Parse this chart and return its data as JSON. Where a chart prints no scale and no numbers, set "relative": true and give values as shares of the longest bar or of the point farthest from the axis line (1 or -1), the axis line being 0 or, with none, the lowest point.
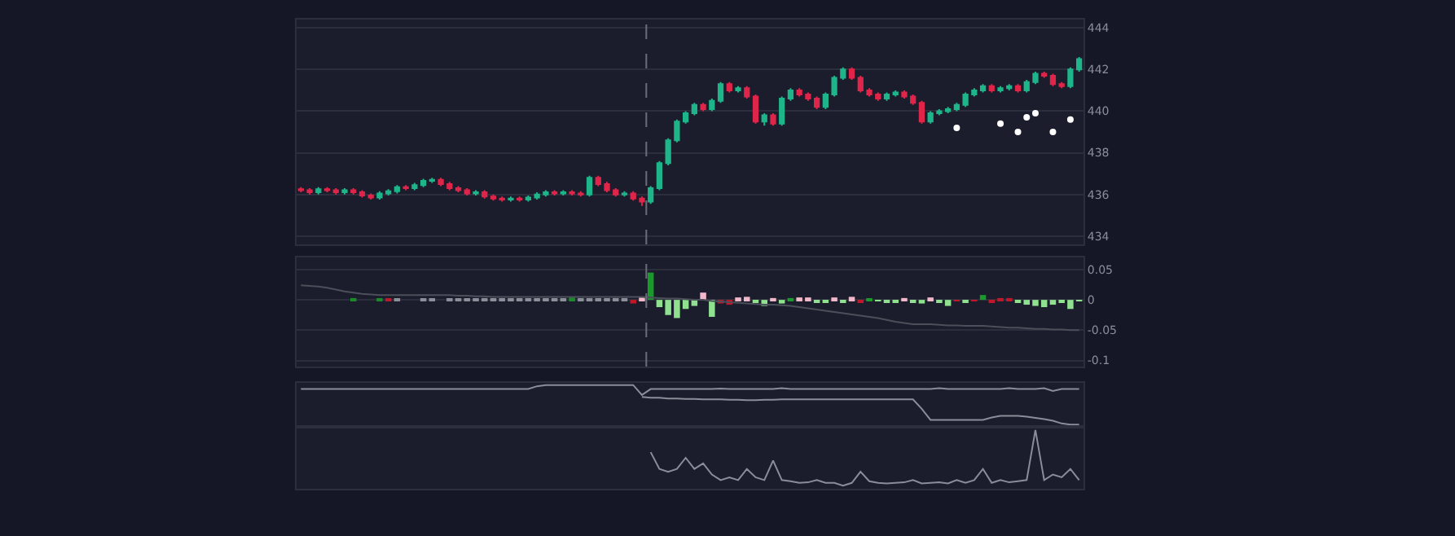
{
  "chart_data": [
    {
      "type": "candlestick",
      "categories": [
        null,
        null,
        null,
        null,
        null,
        null,
        null,
        null,
        null,
        null,
        null,
        null,
        null,
        null,
        null,
        null,
        null,
        null,
        null,
        null,
        null,
        null,
        null,
        null,
        null,
        null,
        null,
        null,
        null,
        null,
        null,
        null,
        null,
        null,
        null,
        null,
        null,
        null,
        null,
        null,
        null,
        null,
        null,
        null,
        null,
        null,
        null,
        null,
        null,
        null,
        null,
        null,
        null,
        null,
        null,
        null,
        null,
        null,
        null,
        null,
        null,
        null,
        null,
        null,
        null,
        null,
        null,
        null,
        null,
        null,
        null,
        null,
        null,
        null,
        null,
        null,
        null,
        null,
        null,
        null,
        null,
        null,
        null,
        null,
        null,
        null,
        null,
        null,
        null,
        null
      ],
      "ohlc": [
        [
          436.25,
          436.35,
          436.1,
          436.2
        ],
        [
          436.2,
          436.3,
          436.0,
          436.1
        ],
        [
          436.1,
          436.35,
          436.0,
          436.25
        ],
        [
          436.25,
          436.35,
          436.1,
          436.2
        ],
        [
          436.2,
          436.3,
          436.0,
          436.1
        ],
        [
          436.1,
          436.3,
          436.0,
          436.2
        ],
        [
          436.2,
          436.3,
          436.0,
          436.1
        ],
        [
          436.1,
          436.2,
          435.85,
          435.95
        ],
        [
          435.95,
          436.05,
          435.75,
          435.85
        ],
        [
          435.85,
          436.15,
          435.75,
          436.05
        ],
        [
          436.05,
          436.25,
          435.95,
          436.15
        ],
        [
          436.15,
          436.45,
          436.05,
          436.35
        ],
        [
          436.35,
          436.45,
          436.2,
          436.3
        ],
        [
          436.3,
          436.55,
          436.2,
          436.45
        ],
        [
          436.45,
          436.75,
          436.35,
          436.65
        ],
        [
          436.65,
          436.8,
          436.55,
          436.7
        ],
        [
          436.7,
          436.8,
          436.4,
          436.5
        ],
        [
          436.5,
          436.6,
          436.2,
          436.3
        ],
        [
          436.3,
          436.4,
          436.1,
          436.2
        ],
        [
          436.2,
          436.3,
          435.95,
          436.05
        ],
        [
          436.05,
          436.2,
          435.95,
          436.1
        ],
        [
          436.1,
          436.2,
          435.8,
          435.9
        ],
        [
          435.9,
          436.0,
          435.7,
          435.8
        ],
        [
          435.8,
          435.9,
          435.65,
          435.75
        ],
        [
          435.75,
          435.9,
          435.65,
          435.8
        ],
        [
          435.8,
          435.9,
          435.65,
          435.75
        ],
        [
          435.75,
          435.95,
          435.65,
          435.85
        ],
        [
          435.85,
          436.1,
          435.75,
          436.0
        ],
        [
          436.0,
          436.2,
          435.9,
          436.1
        ],
        [
          436.1,
          436.2,
          435.95,
          436.05
        ],
        [
          436.05,
          436.2,
          435.95,
          436.1
        ],
        [
          436.1,
          436.2,
          435.95,
          436.05
        ],
        [
          436.05,
          436.15,
          435.9,
          436.0
        ],
        [
          436.0,
          436.9,
          435.9,
          436.8
        ],
        [
          436.8,
          436.9,
          436.4,
          436.5
        ],
        [
          436.5,
          436.6,
          436.1,
          436.2
        ],
        [
          436.2,
          436.3,
          435.9,
          436.0
        ],
        [
          436.0,
          436.15,
          435.9,
          436.05
        ],
        [
          436.05,
          436.15,
          435.7,
          435.8
        ],
        [
          435.8,
          435.9,
          435.45,
          435.65
        ],
        [
          435.65,
          436.4,
          435.55,
          436.3
        ],
        [
          436.3,
          437.6,
          436.2,
          437.5
        ],
        [
          437.5,
          438.7,
          437.4,
          438.6
        ],
        [
          438.6,
          439.6,
          438.5,
          439.5
        ],
        [
          439.5,
          440.0,
          439.4,
          439.9
        ],
        [
          439.9,
          440.4,
          439.8,
          440.3
        ],
        [
          440.3,
          440.4,
          440.0,
          440.1
        ],
        [
          440.1,
          440.6,
          440.0,
          440.5
        ],
        [
          440.5,
          441.4,
          440.4,
          441.3
        ],
        [
          441.3,
          441.4,
          440.9,
          441.0
        ],
        [
          441.0,
          441.2,
          440.9,
          441.1
        ],
        [
          441.1,
          441.2,
          440.6,
          440.7
        ],
        [
          440.7,
          440.8,
          439.4,
          439.5
        ],
        [
          439.5,
          439.9,
          439.3,
          439.8
        ],
        [
          439.8,
          439.9,
          439.3,
          439.4
        ],
        [
          439.4,
          440.7,
          439.3,
          440.6
        ],
        [
          440.6,
          441.1,
          440.5,
          441.0
        ],
        [
          441.0,
          441.1,
          440.7,
          440.8
        ],
        [
          440.8,
          440.9,
          440.5,
          440.6
        ],
        [
          440.6,
          440.7,
          440.1,
          440.2
        ],
        [
          440.2,
          440.9,
          440.1,
          440.8
        ],
        [
          440.8,
          441.7,
          440.7,
          441.6
        ],
        [
          441.6,
          442.1,
          441.5,
          442.0
        ],
        [
          442.0,
          442.1,
          441.5,
          441.6
        ],
        [
          441.6,
          441.7,
          440.9,
          441.0
        ],
        [
          441.0,
          441.1,
          440.7,
          440.8
        ],
        [
          440.8,
          440.9,
          440.5,
          440.6
        ],
        [
          440.6,
          440.9,
          440.5,
          440.8
        ],
        [
          440.8,
          441.0,
          440.7,
          440.9
        ],
        [
          440.9,
          441.0,
          440.6,
          440.7
        ],
        [
          440.7,
          440.8,
          440.3,
          440.4
        ],
        [
          440.4,
          440.5,
          439.4,
          439.5
        ],
        [
          439.5,
          440.0,
          439.4,
          439.9
        ],
        [
          439.9,
          440.1,
          439.8,
          440.0
        ],
        [
          440.0,
          440.2,
          439.9,
          440.1
        ],
        [
          440.1,
          440.4,
          440.0,
          440.3
        ],
        [
          440.3,
          440.9,
          440.2,
          440.8
        ],
        [
          440.8,
          441.1,
          440.7,
          441.0
        ],
        [
          441.0,
          441.3,
          440.9,
          441.2
        ],
        [
          441.2,
          441.3,
          440.9,
          441.0
        ],
        [
          441.0,
          441.2,
          440.9,
          441.1
        ],
        [
          441.1,
          441.3,
          441.0,
          441.2
        ],
        [
          441.2,
          441.3,
          440.9,
          441.0
        ],
        [
          441.0,
          441.5,
          440.9,
          441.4
        ],
        [
          441.4,
          441.9,
          441.3,
          441.8
        ],
        [
          441.8,
          441.9,
          441.6,
          441.7
        ],
        [
          441.7,
          441.8,
          441.2,
          441.3
        ],
        [
          441.3,
          441.4,
          441.1,
          441.2
        ],
        [
          441.2,
          442.1,
          441.1,
          442.0
        ],
        [
          442.0,
          442.6,
          441.9,
          442.5
        ]
      ],
      "colors": [
        "#e0254a",
        "#e0254a",
        "#1fb58a",
        "#e0254a",
        "#e0254a",
        "#1fb58a",
        "#e0254a",
        "#e0254a",
        "#e0254a",
        "#1fb58a",
        "#1fb58a",
        "#1fb58a",
        "#e0254a",
        "#1fb58a",
        "#1fb58a",
        "#1fb58a",
        "#e0254a",
        "#e0254a",
        "#e0254a",
        "#e0254a",
        "#1fb58a",
        "#e0254a",
        "#e0254a",
        "#e0254a",
        "#1fb58a",
        "#e0254a",
        "#1fb58a",
        "#1fb58a",
        "#1fb58a",
        "#e0254a",
        "#1fb58a",
        "#e0254a",
        "#e0254a",
        "#1fb58a",
        "#e0254a",
        "#e0254a",
        "#e0254a",
        "#1fb58a",
        "#e0254a",
        "#e0254a",
        "#1fb58a",
        "#1fb58a",
        "#1fb58a",
        "#1fb58a",
        "#1fb58a",
        "#1fb58a",
        "#e0254a",
        "#1fb58a",
        "#1fb58a",
        "#e0254a",
        "#1fb58a",
        "#e0254a",
        "#e0254a",
        "#1fb58a",
        "#e0254a",
        "#1fb58a",
        "#1fb58a",
        "#e0254a",
        "#e0254a",
        "#e0254a",
        "#1fb58a",
        "#1fb58a",
        "#1fb58a",
        "#e0254a",
        "#e0254a",
        "#e0254a",
        "#e0254a",
        "#1fb58a",
        "#1fb58a",
        "#e0254a",
        "#e0254a",
        "#e0254a",
        "#1fb58a",
        "#1fb58a",
        "#1fb58a",
        "#1fb58a",
        "#1fb58a",
        "#1fb58a",
        "#1fb58a",
        "#e0254a",
        "#1fb58a",
        "#1fb58a",
        "#e0254a",
        "#1fb58a",
        "#1fb58a",
        "#e0254a",
        "#e0254a",
        "#e0254a",
        "#1fb58a",
        "#1fb58a"
      ],
      "series": [
        {
          "type": "scatter",
          "color": "#ffffff",
          "marker": "circle",
          "values": [
            null,
            null,
            null,
            null,
            null,
            null,
            null,
            null,
            null,
            null,
            null,
            null,
            null,
            null,
            null,
            null,
            null,
            null,
            null,
            null,
            null,
            null,
            null,
            null,
            null,
            null,
            null,
            null,
            null,
            null,
            null,
            null,
            null,
            null,
            null,
            null,
            null,
            null,
            null,
            null,
            null,
            null,
            null,
            null,
            null,
            null,
            null,
            null,
            null,
            null,
            null,
            null,
            null,
            null,
            null,
            null,
            null,
            null,
            null,
            null,
            null,
            null,
            null,
            null,
            null,
            null,
            null,
            null,
            null,
            null,
            null,
            null,
            null,
            null,
            null,
            439.2,
            null,
            null,
            null,
            null,
            439.4,
            null,
            439.0,
            439.7,
            439.9,
            null,
            439.0,
            null,
            439.6,
            null
          ]
        }
      ],
      "ylim": [
        433.6,
        444.4
      ],
      "yticks": [
        434,
        436,
        438,
        440,
        442,
        444
      ],
      "grid": "y",
      "tick_labels": "y"
    },
    {
      "type": "bar",
      "categories": [
        null,
        null,
        null,
        null,
        null,
        null,
        null,
        null,
        null,
        null,
        null,
        null,
        null,
        null,
        null,
        null,
        null,
        null,
        null,
        null,
        null,
        null,
        null,
        null,
        null,
        null,
        null,
        null,
        null,
        null,
        null,
        null,
        null,
        null,
        null,
        null,
        null,
        null,
        null,
        null,
        null,
        null,
        null,
        null,
        null,
        null,
        null,
        null,
        null,
        null,
        null,
        null,
        null,
        null,
        null,
        null,
        null,
        null,
        null,
        null,
        null,
        null,
        null,
        null,
        null,
        null,
        null,
        null,
        null,
        null,
        null,
        null,
        null,
        null,
        null,
        null,
        null,
        null,
        null,
        null,
        null,
        null,
        null,
        null,
        null,
        null,
        null,
        null,
        null,
        null
      ],
      "series": [
        {
          "values": [
            0,
            0,
            0,
            0,
            0,
            0,
            0.003,
            0,
            0,
            0.002,
            0.001,
            0.002,
            0,
            0,
            0.001,
            0.002,
            0,
            0.001,
            0.002,
            0.001,
            0.002,
            0.003,
            0.001,
            0.002,
            0.002,
            0.001,
            0.002,
            0.002,
            0.001,
            0.002,
            0.001,
            0.004,
            0.002,
            0.002,
            0.001,
            0.002,
            0.003,
            0.003,
            -0.006,
            0.004,
            0.045,
            -0.012,
            -0.025,
            -0.03,
            -0.015,
            -0.01,
            0.012,
            -0.028,
            -0.006,
            -0.008,
            0.004,
            0.005,
            -0.004,
            -0.01,
            0.003,
            -0.006,
            0.003,
            0.004,
            0.004,
            -0.004,
            -0.003,
            0.004,
            -0.004,
            0.005,
            -0.003,
            0.002,
            -0.002,
            -0.004,
            -0.005,
            0.003,
            -0.003,
            -0.006,
            0.004,
            -0.004,
            -0.01,
            -0.002,
            -0.003,
            -0.002,
            0.008,
            -0.003,
            0.003,
            0.003,
            -0.005,
            -0.008,
            -0.01,
            -0.012,
            -0.008,
            -0.005,
            -0.015,
            -0.002
          ],
          "colors": [
            "#8a8f99",
            "#8a8f99",
            "#8a8f99",
            "#8a8f99",
            "#8a8f99",
            "#8a8f99",
            "#1a8a2a",
            "#8a8f99",
            "#8a8f99",
            "#1a8a2a",
            "#c0182a",
            "#8a8f99",
            "#8a8f99",
            "#8a8f99",
            "#8a8f99",
            "#8a8f99",
            "#8a8f99",
            "#8a8f99",
            "#8a8f99",
            "#8a8f99",
            "#8a8f99",
            "#8a8f99",
            "#8a8f99",
            "#8a8f99",
            "#8a8f99",
            "#8a8f99",
            "#8a8f99",
            "#8a8f99",
            "#8a8f99",
            "#8a8f99",
            "#8a8f99",
            "#1a8a2a",
            "#8a8f99",
            "#8a8f99",
            "#8a8f99",
            "#8a8f99",
            "#8a8f99",
            "#8a8f99",
            "#c0182a",
            "#f0b8c8",
            "#1a9a2a",
            "#8fe08f",
            "#8fe08f",
            "#8fe08f",
            "#8fe08f",
            "#8fe08f",
            "#f0b8c8",
            "#8fe08f",
            "#c0182a",
            "#c0182a",
            "#f0b8c8",
            "#f0b8c8",
            "#8fe08f",
            "#8fe08f",
            "#f0b8c8",
            "#8fe08f",
            "#1a9a2a",
            "#f0b8c8",
            "#f0b8c8",
            "#8fe08f",
            "#8fe08f",
            "#f0b8c8",
            "#8fe08f",
            "#f0b8c8",
            "#c0182a",
            "#1a9a2a",
            "#8fe08f",
            "#8fe08f",
            "#8fe08f",
            "#f0b8c8",
            "#8fe08f",
            "#8fe08f",
            "#f0b8c8",
            "#8fe08f",
            "#8fe08f",
            "#c0182a",
            "#8fe08f",
            "#c0182a",
            "#1a9a2a",
            "#c0182a",
            "#c0182a",
            "#c0182a",
            "#8fe08f",
            "#8fe08f",
            "#8fe08f",
            "#8fe08f",
            "#8fe08f",
            "#8fe08f",
            "#8fe08f",
            "#8fe08f"
          ]
        },
        {
          "type": "line",
          "color": "#4a4f5a",
          "values": [
            0.024,
            0.023,
            0.022,
            0.02,
            0.017,
            0.014,
            0.012,
            0.01,
            0.009,
            0.008,
            0.008,
            0.008,
            0.008,
            0.008,
            0.008,
            0.008,
            0.008,
            0.008,
            0.007,
            0.007,
            0.006,
            0.006,
            0.005,
            0.005,
            0.005,
            0.005,
            0.005,
            0.005,
            0.005,
            0.005,
            0.005,
            0.005,
            0.005,
            0.005,
            0.005,
            0.005,
            0.005,
            0.005,
            0.005,
            0.005,
            0.004,
            0.003,
            0.002,
            0.002,
            0.001,
            0.0,
            0.0,
            -0.002,
            -0.003,
            -0.004,
            -0.005,
            -0.006,
            -0.007,
            -0.008,
            -0.008,
            -0.009,
            -0.01,
            -0.012,
            -0.014,
            -0.016,
            -0.018,
            -0.02,
            -0.022,
            -0.024,
            -0.026,
            -0.028,
            -0.03,
            -0.033,
            -0.036,
            -0.038,
            -0.04,
            -0.04,
            -0.04,
            -0.041,
            -0.042,
            -0.042,
            -0.043,
            -0.043,
            -0.043,
            -0.044,
            -0.045,
            -0.046,
            -0.046,
            -0.047,
            -0.048,
            -0.048,
            -0.049,
            -0.049,
            -0.05,
            -0.05
          ]
        }
      ],
      "ylim": [
        -0.11,
        0.07
      ],
      "yticks": [
        0.05,
        0,
        -0.05,
        -0.1
      ],
      "grid": "y",
      "tick_labels": "y"
    },
    {
      "type": "line",
      "relative": true,
      "categories": [
        null,
        null,
        null,
        null,
        null,
        null,
        null,
        null,
        null,
        null,
        null,
        null,
        null,
        null,
        null,
        null,
        null,
        null,
        null,
        null,
        null,
        null,
        null,
        null,
        null,
        null,
        null,
        null,
        null,
        null,
        null,
        null,
        null,
        null,
        null,
        null,
        null,
        null,
        null,
        null,
        null,
        null,
        null,
        null,
        null,
        null,
        null,
        null,
        null,
        null,
        null,
        null,
        null,
        null,
        null,
        null,
        null,
        null,
        null,
        null,
        null,
        null,
        null,
        null,
        null,
        null,
        null,
        null,
        null,
        null,
        null,
        null,
        null,
        null,
        null,
        null,
        null,
        null,
        null,
        null,
        null,
        null,
        null,
        null,
        null,
        null,
        null,
        null,
        null,
        null
      ],
      "series": [
        {
          "color": "#8a8d99",
          "values": [
            0.9,
            0.9,
            0.9,
            0.9,
            0.9,
            0.9,
            0.9,
            0.9,
            0.9,
            0.9,
            0.9,
            0.9,
            0.9,
            0.9,
            0.9,
            0.9,
            0.9,
            0.9,
            0.9,
            0.9,
            0.9,
            0.9,
            0.9,
            0.9,
            0.9,
            0.9,
            0.9,
            0.97,
            1,
            1,
            1,
            1,
            1,
            1,
            1,
            1,
            1,
            1,
            1,
            0.75,
            0.9,
            0.9,
            0.9,
            0.9,
            0.9,
            0.9,
            0.9,
            0.9,
            0.91,
            0.9,
            0.9,
            0.9,
            0.9,
            0.9,
            0.9,
            0.92,
            0.9,
            0.9,
            0.9,
            0.9,
            0.9,
            0.9,
            0.9,
            0.9,
            0.9,
            0.9,
            0.9,
            0.9,
            0.9,
            0.9,
            0.9,
            0.9,
            0.9,
            0.92,
            0.9,
            0.9,
            0.9,
            0.9,
            0.9,
            0.9,
            0.9,
            0.92,
            0.9,
            0.9,
            0.9,
            0.92,
            0.85,
            0.9,
            0.9,
            0.9
          ]
        },
        {
          "color": "#8a8d99",
          "values": [
            null,
            null,
            null,
            null,
            null,
            null,
            null,
            null,
            null,
            null,
            null,
            null,
            null,
            null,
            null,
            null,
            null,
            null,
            null,
            null,
            null,
            null,
            null,
            null,
            null,
            null,
            null,
            null,
            null,
            null,
            null,
            null,
            null,
            null,
            null,
            null,
            null,
            null,
            null,
            0.7,
            0.68,
            0.68,
            0.66,
            0.66,
            0.65,
            0.65,
            0.64,
            0.64,
            0.64,
            0.63,
            0.63,
            0.62,
            0.62,
            0.63,
            0.63,
            0.64,
            0.64,
            0.64,
            0.64,
            0.64,
            0.64,
            0.64,
            0.64,
            0.64,
            0.64,
            0.64,
            0.64,
            0.64,
            0.64,
            0.64,
            0.64,
            0.4,
            0.12,
            0.12,
            0.12,
            0.12,
            0.12,
            0.12,
            0.12,
            0.18,
            0.22,
            0.22,
            0.22,
            0.2,
            0.17,
            0.14,
            0.1,
            0.03,
            0,
            0
          ]
        }
      ],
      "tick_labels": false
    },
    {
      "type": "line",
      "relative": true,
      "categories": [
        null,
        null,
        null,
        null,
        null,
        null,
        null,
        null,
        null,
        null,
        null,
        null,
        null,
        null,
        null,
        null,
        null,
        null,
        null,
        null,
        null,
        null,
        null,
        null,
        null,
        null,
        null,
        null,
        null,
        null,
        null,
        null,
        null,
        null,
        null,
        null,
        null,
        null,
        null,
        null,
        null,
        null,
        null,
        null,
        null,
        null,
        null,
        null,
        null,
        null
      ],
      "series": [
        {
          "color": "#8a8d99",
          "values": [
            0.6,
            0.3,
            0.25,
            0.3,
            0.5,
            0.3,
            0.4,
            0.2,
            0.1,
            0.15,
            0.1,
            0.3,
            0.15,
            0.1,
            0.45,
            0.1,
            0.08,
            0.05,
            0.06,
            0.1,
            0.05,
            0.05,
            0,
            0.05,
            0.25,
            0.08,
            0.05,
            0.04,
            0.05,
            0.06,
            0.1,
            0.04,
            0.05,
            0.06,
            0.04,
            0.1,
            0.05,
            0.1,
            0.3,
            0.05,
            0.1,
            0.06,
            0.08,
            0.1,
            1,
            0.1,
            0.2,
            0.15,
            0.3,
            0.1
          ]
        }
      ],
      "tick_labels": false
    }
  ]
}
